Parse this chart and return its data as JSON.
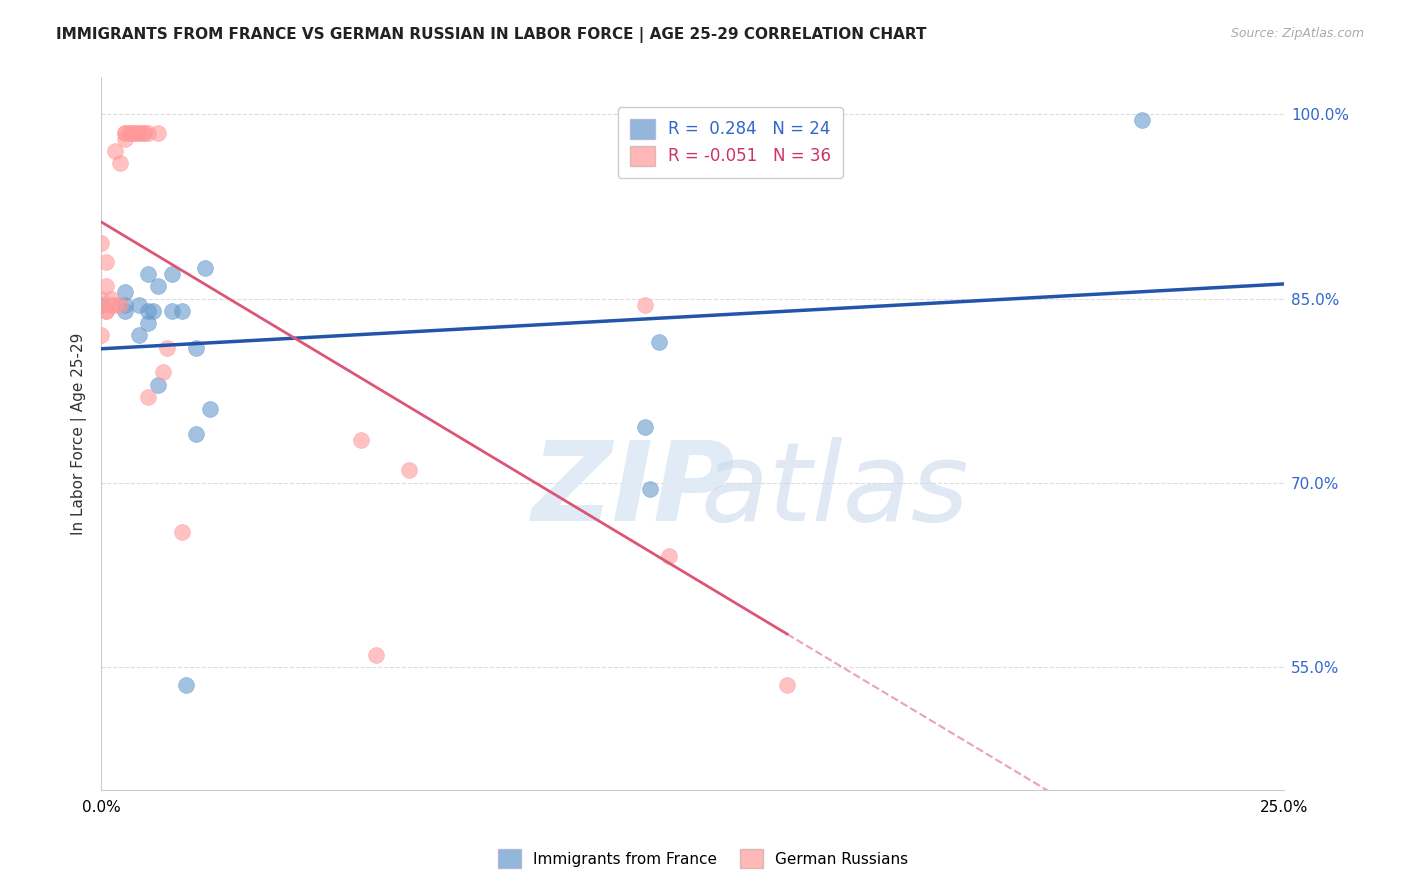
{
  "title": "IMMIGRANTS FROM FRANCE VS GERMAN RUSSIAN IN LABOR FORCE | AGE 25-29 CORRELATION CHART",
  "source": "Source: ZipAtlas.com",
  "ylabel_label": "In Labor Force | Age 25-29",
  "xlim": [
    0.0,
    0.25
  ],
  "ylim": [
    0.45,
    1.03
  ],
  "xticks": [
    0.0,
    0.05,
    0.1,
    0.15,
    0.2,
    0.25
  ],
  "xtick_labels": [
    "0.0%",
    "",
    "",
    "",
    "",
    "25.0%"
  ],
  "ytick_labels_right": [
    "100.0%",
    "85.0%",
    "70.0%",
    "55.0%"
  ],
  "ytick_vals_right": [
    1.0,
    0.85,
    0.7,
    0.55
  ],
  "blue_R": 0.284,
  "blue_N": 24,
  "pink_R": -0.051,
  "pink_N": 36,
  "blue_color": "#6699cc",
  "pink_color": "#ff9999",
  "blue_line_color": "#2255aa",
  "pink_line_color": "#dd5577",
  "grid_color": "#dddddd",
  "background_color": "#ffffff",
  "blue_scatter_x": [
    0.0,
    0.005,
    0.005,
    0.005,
    0.008,
    0.008,
    0.01,
    0.01,
    0.01,
    0.011,
    0.012,
    0.012,
    0.015,
    0.015,
    0.017,
    0.018,
    0.02,
    0.02,
    0.022,
    0.023,
    0.115,
    0.116,
    0.118,
    0.22
  ],
  "blue_scatter_y": [
    0.845,
    0.845,
    0.855,
    0.84,
    0.845,
    0.82,
    0.84,
    0.87,
    0.83,
    0.84,
    0.86,
    0.78,
    0.84,
    0.87,
    0.84,
    0.535,
    0.74,
    0.81,
    0.875,
    0.76,
    0.745,
    0.695,
    0.815,
    0.995
  ],
  "pink_scatter_x": [
    0.0,
    0.0,
    0.0,
    0.001,
    0.001,
    0.001,
    0.001,
    0.002,
    0.002,
    0.003,
    0.003,
    0.004,
    0.004,
    0.005,
    0.005,
    0.005,
    0.006,
    0.006,
    0.007,
    0.007,
    0.008,
    0.008,
    0.009,
    0.009,
    0.01,
    0.01,
    0.012,
    0.013,
    0.014,
    0.017,
    0.055,
    0.058,
    0.065,
    0.115,
    0.12,
    0.145
  ],
  "pink_scatter_y": [
    0.85,
    0.82,
    0.895,
    0.88,
    0.84,
    0.86,
    0.84,
    0.845,
    0.85,
    0.845,
    0.97,
    0.845,
    0.96,
    0.98,
    0.985,
    0.985,
    0.985,
    0.985,
    0.985,
    0.985,
    0.985,
    0.985,
    0.985,
    0.985,
    0.985,
    0.77,
    0.985,
    0.79,
    0.81,
    0.66,
    0.735,
    0.56,
    0.71,
    0.845,
    0.64,
    0.535
  ]
}
